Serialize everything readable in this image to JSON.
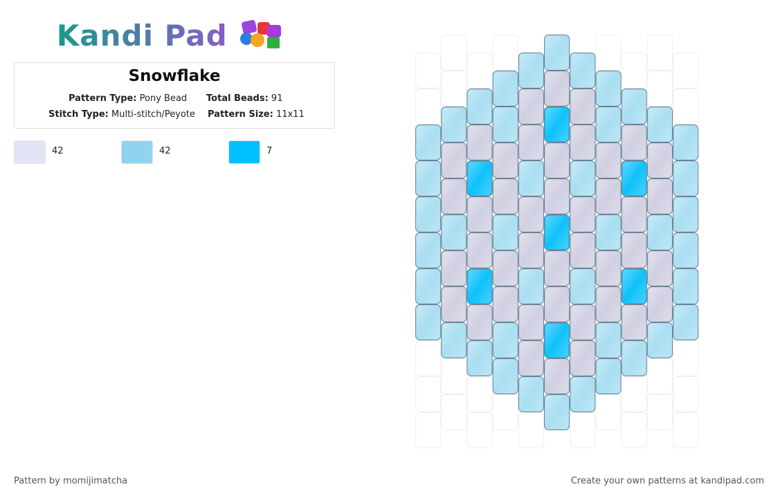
{
  "header": {
    "logo": "Kandi Pad"
  },
  "pattern": {
    "title": "Snowflake",
    "type_label": "Pattern Type:",
    "type": "Pony Bead",
    "total_label": "Total Beads:",
    "total": "91",
    "stitch_label": "Stitch Type:",
    "stitch": "Multi-stitch/Peyote",
    "size_label": "Pattern Size:",
    "size": "11x11"
  },
  "legend": [
    {
      "color": "#e4e4f7",
      "count": 42
    },
    {
      "color": "#8fd3ef",
      "count": 42
    },
    {
      "color": "#00bfff",
      "count": 7
    }
  ],
  "bead_colors": [
    "#d0d0e2",
    "#a9def1",
    "#0ec1fb"
  ],
  "columns": [
    [
      null,
      null,
      1,
      1,
      1,
      1,
      1,
      1,
      null,
      null,
      null
    ],
    [
      null,
      null,
      1,
      0,
      0,
      1,
      0,
      0,
      1,
      null,
      null
    ],
    [
      null,
      1,
      0,
      2,
      0,
      0,
      2,
      0,
      1,
      null,
      null
    ],
    [
      null,
      1,
      1,
      0,
      0,
      1,
      0,
      0,
      1,
      1,
      null
    ],
    [
      1,
      0,
      0,
      1,
      0,
      0,
      1,
      0,
      0,
      1,
      null
    ],
    [
      1,
      0,
      2,
      0,
      0,
      2,
      0,
      0,
      2,
      0,
      1
    ],
    [
      1,
      0,
      0,
      1,
      0,
      0,
      1,
      0,
      0,
      1,
      null
    ],
    [
      null,
      1,
      1,
      0,
      0,
      1,
      0,
      0,
      1,
      1,
      null
    ],
    [
      null,
      1,
      0,
      2,
      0,
      0,
      2,
      0,
      1,
      null,
      null
    ],
    [
      null,
      null,
      1,
      0,
      0,
      1,
      0,
      0,
      1,
      null,
      null
    ],
    [
      null,
      null,
      1,
      1,
      1,
      1,
      1,
      1,
      null,
      null,
      null
    ]
  ],
  "footer": {
    "left": "Pattern by momijimatcha",
    "right": "Create your own patterns at kandipad.com"
  }
}
